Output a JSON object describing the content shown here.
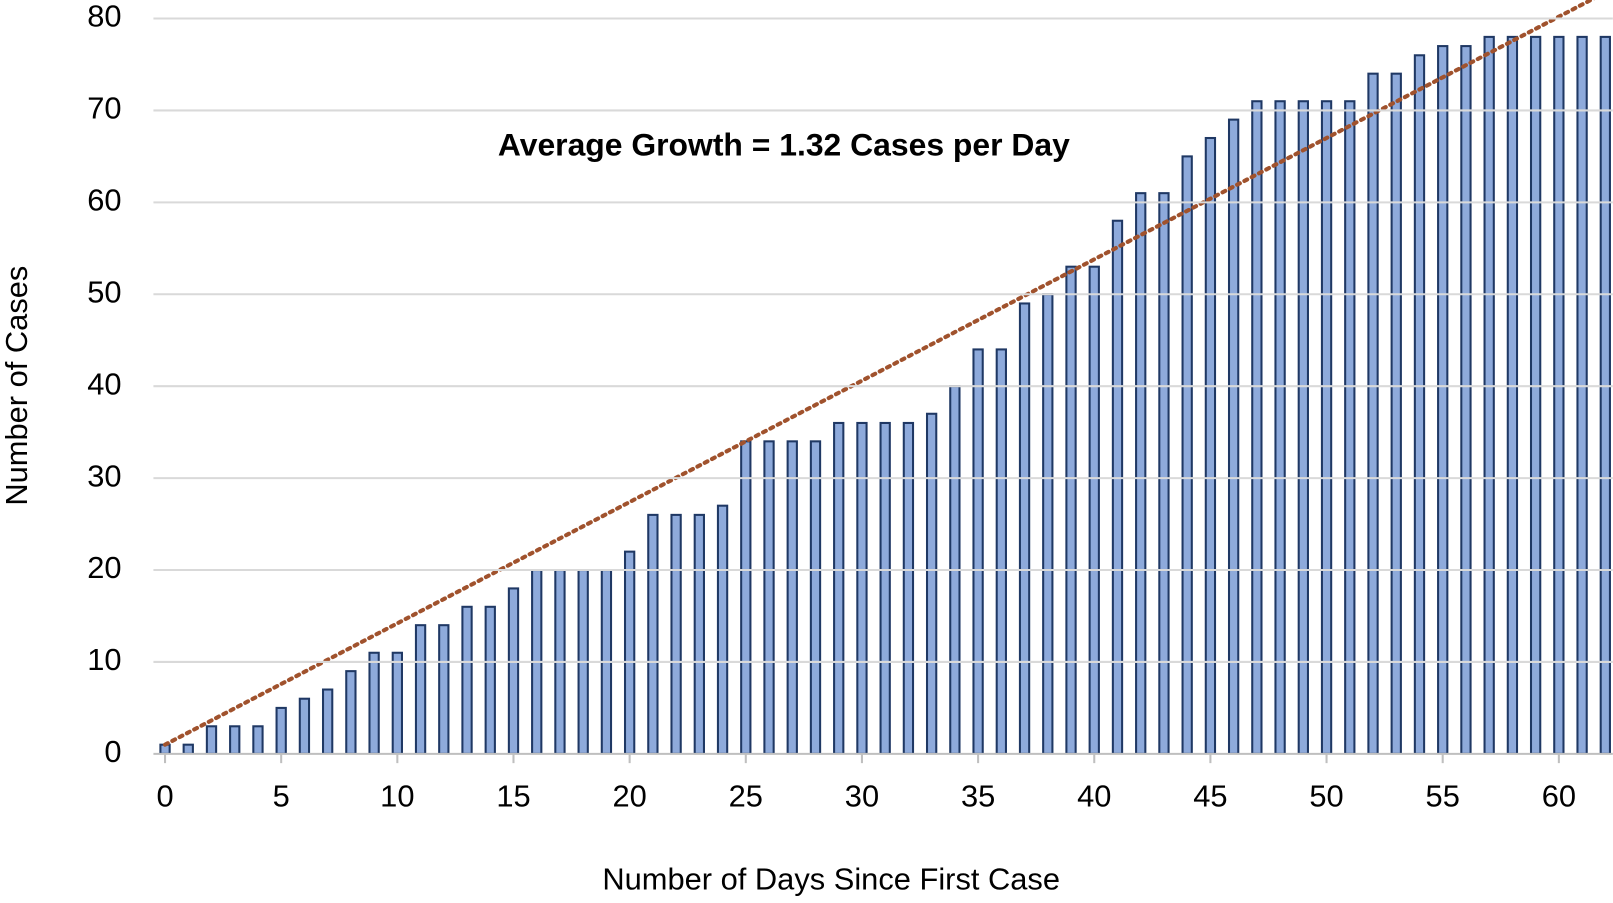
{
  "chart_data": {
    "type": "bar",
    "annotation": "Average Growth = 1.32 Cases per Day",
    "xlabel": "Number of Days Since First Case",
    "ylabel": "Number of Cases",
    "x": [
      0,
      1,
      2,
      3,
      4,
      5,
      6,
      7,
      8,
      9,
      10,
      11,
      12,
      13,
      14,
      15,
      16,
      17,
      18,
      19,
      20,
      21,
      22,
      23,
      24,
      25,
      26,
      27,
      28,
      29,
      30,
      31,
      32,
      33,
      34,
      35,
      36,
      37,
      38,
      39,
      40,
      41,
      42,
      43,
      44,
      45,
      46,
      47,
      48,
      49,
      50,
      51,
      52,
      53,
      54,
      55,
      56,
      57,
      58,
      59,
      60,
      61,
      62
    ],
    "values": [
      1,
      1,
      3,
      3,
      3,
      5,
      6,
      7,
      9,
      11,
      11,
      14,
      14,
      16,
      16,
      18,
      20,
      20,
      20,
      20,
      22,
      26,
      26,
      26,
      27,
      34,
      34,
      34,
      34,
      36,
      36,
      36,
      36,
      37,
      40,
      44,
      44,
      49,
      50,
      53,
      53,
      58,
      61,
      61,
      65,
      67,
      69,
      71,
      71,
      71,
      71,
      71,
      74,
      74,
      76,
      77,
      77,
      78,
      78,
      78,
      78,
      78,
      78
    ],
    "color": "#8eaadb",
    "edge_color": "#1f3864",
    "trendline": {
      "slope": 1.32,
      "intercept": 1,
      "color": "#a0522d"
    },
    "xlim": [
      -0.5,
      62.5
    ],
    "xticks": [
      0,
      5,
      10,
      15,
      20,
      25,
      30,
      35,
      40,
      45,
      50,
      55,
      60
    ],
    "ylim": [
      0,
      80
    ],
    "yticks": [
      0,
      10,
      20,
      30,
      40,
      50,
      60,
      70,
      80
    ],
    "grid": true
  }
}
